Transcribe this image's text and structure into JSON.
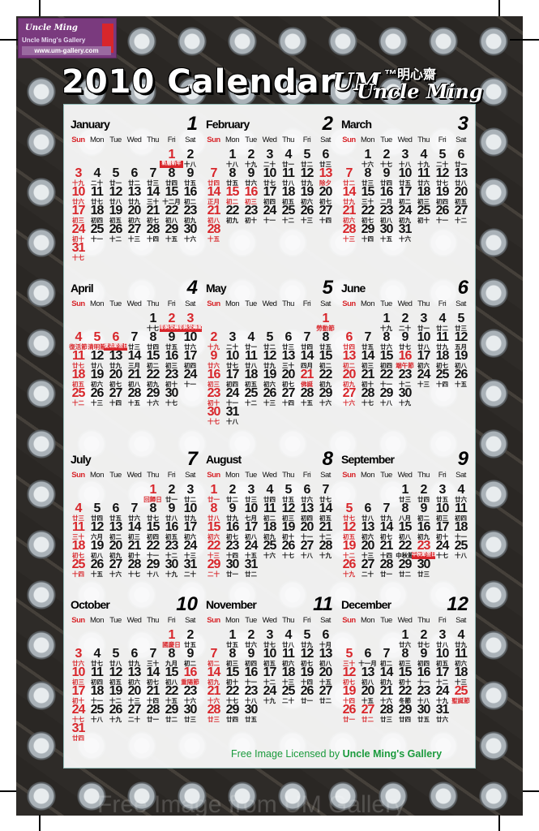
{
  "logo": {
    "line1": "Uncle Ming",
    "line2": "Uncle Ming's Gallery",
    "url": "www.um-gallery.com"
  },
  "title": "2010 Calendar",
  "brand": {
    "mark": "UM",
    "chinese": "™明心齋",
    "english": "Uncle Ming"
  },
  "weekdays": [
    "Sun",
    "Mon",
    "Tue",
    "Wed",
    "Thu",
    "Fri",
    "Sat"
  ],
  "year": 2010,
  "colors": {
    "red": "#d8262b",
    "footer_green": "#1a9a3c",
    "logo_purple": "#7a3a7e"
  },
  "months": [
    {
      "name": "January",
      "number": "1",
      "red": [
        1
      ],
      "holidays": [
        1
      ],
      "lunar": [
        "新曆新年",
        "十八",
        "十九",
        "二十",
        "廿一",
        "廿二",
        "廿三",
        "廿四",
        "廿五",
        "廿六",
        "廿七",
        "廿八",
        "廿九",
        "三十",
        "十二月",
        "初二",
        "初三",
        "初四",
        "初五",
        "初六",
        "初七",
        "初八",
        "初九",
        "初十",
        "十一",
        "十二",
        "十三",
        "十四",
        "十五",
        "十六",
        "十七"
      ]
    },
    {
      "name": "February",
      "number": "2",
      "red": [
        13,
        15,
        16
      ],
      "holidays": [],
      "lunar": [
        "十八",
        "十九",
        "二十",
        "廿一",
        "廿二",
        "廿三",
        "廿四",
        "廿五",
        "廿六",
        "廿七",
        "廿八",
        "廿九",
        "除夕",
        "正月",
        "初二",
        "初三",
        "初四",
        "初五",
        "初六",
        "初七",
        "初八",
        "初九",
        "初十",
        "十一",
        "十二",
        "十三",
        "十四",
        "十五"
      ]
    },
    {
      "name": "March",
      "number": "3",
      "red": [],
      "holidays": [],
      "lunar": [
        "十六",
        "十七",
        "十八",
        "十九",
        "二十",
        "廿一",
        "廿二",
        "廿三",
        "廿四",
        "廿五",
        "廿六",
        "廿七",
        "廿八",
        "廿九",
        "三十",
        "二月",
        "初二",
        "初三",
        "初四",
        "初五",
        "初六",
        "初七",
        "初八",
        "初九",
        "初十",
        "十一",
        "十二",
        "十三",
        "十四",
        "十五",
        "十六"
      ]
    },
    {
      "name": "April",
      "number": "4",
      "red": [
        2,
        3,
        5,
        6
      ],
      "holidays": [
        2,
        3,
        4,
        5,
        6
      ],
      "lunar": [
        "十七",
        "耶穌受難節",
        "耶穌受難節翌日",
        "復活節",
        "清明節",
        "復活節翌日",
        "廿三",
        "廿四",
        "廿五",
        "廿六",
        "廿七",
        "廿八",
        "廿九",
        "三月",
        "初二",
        "初三",
        "初四",
        "初五",
        "初六",
        "初七",
        "初八",
        "初九",
        "初十",
        "十一",
        "十二",
        "十三",
        "十四",
        "十五",
        "十六",
        "十七"
      ]
    },
    {
      "name": "May",
      "number": "5",
      "red": [
        1,
        21
      ],
      "holidays": [
        1,
        21
      ],
      "lunar": [
        "勞動節",
        "十九",
        "二十",
        "廿一",
        "廿二",
        "廿三",
        "廿四",
        "廿五",
        "廿六",
        "廿七",
        "廿八",
        "廿九",
        "三十",
        "四月",
        "初二",
        "初三",
        "初四",
        "初五",
        "初六",
        "初七",
        "佛誕",
        "初九",
        "初十",
        "十一",
        "十二",
        "十三",
        "十四",
        "十五",
        "十六",
        "十七",
        "十八"
      ]
    },
    {
      "name": "June",
      "number": "6",
      "red": [
        16
      ],
      "holidays": [
        16
      ],
      "lunar": [
        "十九",
        "二十",
        "廿一",
        "廿二",
        "廿三",
        "廿四",
        "廿五",
        "廿六",
        "廿七",
        "廿八",
        "廿九",
        "五月",
        "初二",
        "初三",
        "初四",
        "端午節",
        "初六",
        "初七",
        "初八",
        "初九",
        "初十",
        "十一",
        "十二",
        "十三",
        "十四",
        "十五",
        "十六",
        "十七",
        "十八",
        "十九"
      ]
    },
    {
      "name": "July",
      "number": "7",
      "red": [
        1
      ],
      "holidays": [
        1
      ],
      "lunar": [
        "回歸日",
        "廿一",
        "廿二",
        "廿三",
        "廿四",
        "廿五",
        "廿六",
        "廿七",
        "廿八",
        "廿九",
        "三十",
        "六月",
        "初二",
        "初三",
        "初四",
        "初五",
        "初六",
        "初七",
        "初八",
        "初九",
        "初十",
        "十一",
        "十二",
        "十三",
        "十四",
        "十五",
        "十六",
        "十七",
        "十八",
        "十九",
        "二十"
      ]
    },
    {
      "name": "August",
      "number": "8",
      "red": [],
      "holidays": [],
      "lunar": [
        "廿一",
        "廿二",
        "廿三",
        "廿四",
        "廿五",
        "廿六",
        "廿七",
        "廿八",
        "廿九",
        "七月",
        "初二",
        "初三",
        "初四",
        "初五",
        "初六",
        "初七",
        "初八",
        "初九",
        "初十",
        "十一",
        "十二",
        "十三",
        "十四",
        "十五",
        "十六",
        "十七",
        "十八",
        "十九",
        "二十",
        "廿一",
        "廿二"
      ]
    },
    {
      "name": "September",
      "number": "9",
      "red": [
        23
      ],
      "holidays": [
        23
      ],
      "lunar": [
        "廿三",
        "廿四",
        "廿五",
        "廿六",
        "廿七",
        "廿八",
        "廿九",
        "八月",
        "初二",
        "初三",
        "初四",
        "初五",
        "初六",
        "初七",
        "初八",
        "初九",
        "初十",
        "十一",
        "十二",
        "十三",
        "十四",
        "中秋節",
        "中秋節翌日",
        "十七",
        "十八",
        "十九",
        "二十",
        "廿一",
        "廿二",
        "廿三"
      ]
    },
    {
      "name": "October",
      "number": "10",
      "red": [
        1,
        16
      ],
      "holidays": [
        1,
        16
      ],
      "lunar": [
        "國慶日",
        "廿五",
        "廿六",
        "廿七",
        "廿八",
        "廿九",
        "三十",
        "九月",
        "初二",
        "初三",
        "初四",
        "初五",
        "初六",
        "初七",
        "初八",
        "重陽節",
        "初十",
        "十一",
        "十二",
        "十三",
        "十四",
        "十五",
        "十六",
        "十七",
        "十八",
        "十九",
        "二十",
        "廿一",
        "廿二",
        "廿三",
        "廿四"
      ]
    },
    {
      "name": "November",
      "number": "11",
      "red": [],
      "holidays": [],
      "lunar": [
        "廿五",
        "廿六",
        "廿七",
        "廿八",
        "廿九",
        "十月",
        "初二",
        "初三",
        "初四",
        "初五",
        "初六",
        "初七",
        "初八",
        "初九",
        "初十",
        "十一",
        "十二",
        "十三",
        "十四",
        "十五",
        "十六",
        "十七",
        "十八",
        "十九",
        "二十",
        "廿一",
        "廿二",
        "廿三",
        "廿四",
        "廿五"
      ]
    },
    {
      "name": "December",
      "number": "12",
      "red": [
        25,
        27
      ],
      "holidays": [
        25
      ],
      "lunar": [
        "廿六",
        "廿七",
        "廿八",
        "廿九",
        "三十",
        "十一月",
        "初二",
        "初三",
        "初四",
        "初五",
        "初六",
        "初七",
        "初八",
        "初九",
        "初十",
        "十一",
        "十二",
        "十三",
        "十四",
        "十五",
        "十六",
        "冬節",
        "十八",
        "十九",
        "聖誕節",
        "廿一",
        "廿二",
        "廿三",
        "廿四",
        "廿五",
        "廿六"
      ]
    }
  ],
  "footer": {
    "prefix": "Free Image Licensed by ",
    "brand": "Uncle Ming's Gallery"
  },
  "watermark": "Free Image from UM Gallery"
}
